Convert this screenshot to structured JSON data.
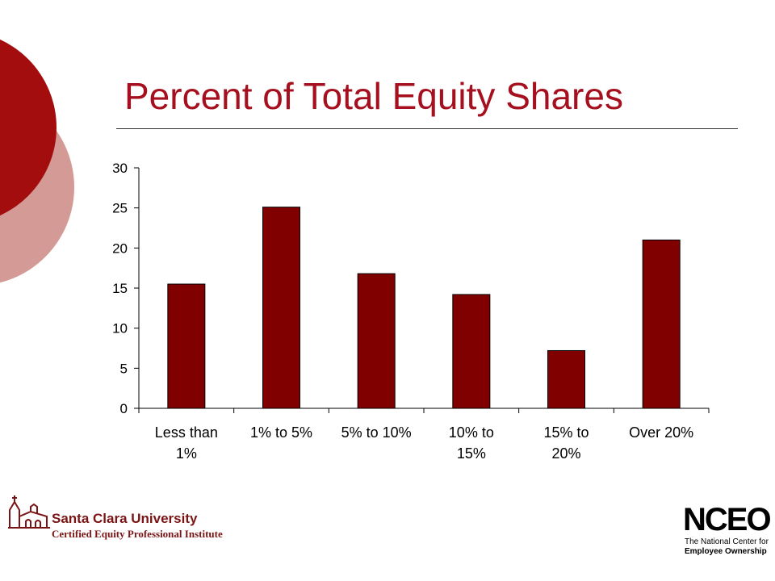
{
  "slide": {
    "title": "Percent of Total Equity Shares",
    "colors": {
      "accent": "#a50f1e",
      "circle_dark": "#a30d0d",
      "circle_light": "#d49b96",
      "bar": "#800000"
    }
  },
  "chart_data": {
    "type": "bar",
    "title": "",
    "xlabel": "",
    "ylabel": "",
    "categories": [
      [
        "Less than",
        "1%"
      ],
      [
        "1% to 5%"
      ],
      [
        "5% to 10%"
      ],
      [
        "10% to",
        "15%"
      ],
      [
        "15% to",
        "20%"
      ],
      [
        "Over 20%"
      ]
    ],
    "values": [
      15.5,
      25.1,
      16.8,
      14.2,
      7.2,
      21.0
    ],
    "ylim": [
      0,
      30
    ],
    "yticks": [
      0,
      5,
      10,
      15,
      20,
      25,
      30
    ],
    "grid": false,
    "legend": "none"
  },
  "footer": {
    "left_logo_name": "Santa Clara University",
    "left_logo_subtitle": "Certified Equity Professional Institute",
    "right_logo_mark": "NCEO",
    "right_logo_line1": "The National Center for",
    "right_logo_line2": "Employee Ownership"
  }
}
